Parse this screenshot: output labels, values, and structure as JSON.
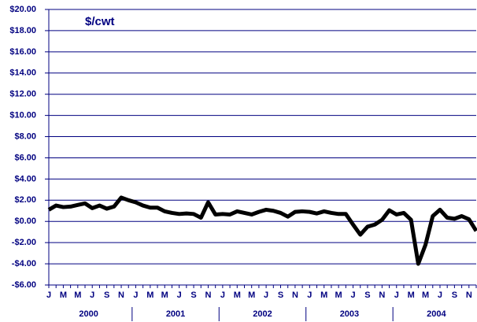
{
  "chart_data": {
    "type": "line",
    "annotation": "$/cwt",
    "categories": [
      "J",
      null,
      "M",
      null,
      "M",
      null,
      "J",
      null,
      "S",
      null,
      "N",
      null,
      "J",
      null,
      "M",
      null,
      "M",
      null,
      "J",
      null,
      "S",
      null,
      "N",
      null,
      "J",
      null,
      "M",
      null,
      "M",
      null,
      "J",
      null,
      "S",
      null,
      "N",
      null,
      "J",
      null,
      "M",
      null,
      "M",
      null,
      "J",
      null,
      "S",
      null,
      "N",
      null,
      "J",
      null,
      "M",
      null,
      "M",
      null,
      "J",
      null,
      "S",
      null,
      "N",
      null
    ],
    "years": [
      "2000",
      "2001",
      "2002",
      "2003",
      "2004"
    ],
    "values": [
      1.1,
      1.5,
      1.35,
      1.4,
      1.55,
      1.7,
      1.25,
      1.5,
      1.2,
      1.4,
      2.25,
      2.0,
      1.8,
      1.5,
      1.3,
      1.3,
      0.95,
      0.8,
      0.7,
      0.75,
      0.7,
      0.35,
      1.8,
      0.65,
      0.7,
      0.65,
      0.95,
      0.8,
      0.65,
      0.9,
      1.1,
      1.0,
      0.8,
      0.45,
      0.9,
      0.95,
      0.9,
      0.75,
      0.95,
      0.8,
      0.7,
      0.7,
      -0.3,
      -1.25,
      -0.5,
      -0.3,
      0.15,
      1.05,
      0.65,
      0.8,
      0.15,
      -4.0,
      -2.2,
      0.5,
      1.1,
      0.35,
      0.25,
      0.5,
      0.2,
      -0.9
    ],
    "color": "#000000",
    "ylim": [
      -6,
      20
    ],
    "yticks": [
      {
        "value": -6,
        "label": "-$6.00"
      },
      {
        "value": -4,
        "label": "-$4.00"
      },
      {
        "value": -2,
        "label": "-$2.00"
      },
      {
        "value": 0,
        "label": "$0.00"
      },
      {
        "value": 2,
        "label": "$2.00"
      },
      {
        "value": 4,
        "label": "$4.00"
      },
      {
        "value": 6,
        "label": "$6.00"
      },
      {
        "value": 8,
        "label": "$8.00"
      },
      {
        "value": 10,
        "label": "$10.00"
      },
      {
        "value": 12,
        "label": "$12.00"
      },
      {
        "value": 14,
        "label": "$14.00"
      },
      {
        "value": 16,
        "label": "$16.00"
      },
      {
        "value": 18,
        "label": "$18.00"
      },
      {
        "value": 20,
        "label": "$20.00"
      }
    ],
    "grid": true
  }
}
